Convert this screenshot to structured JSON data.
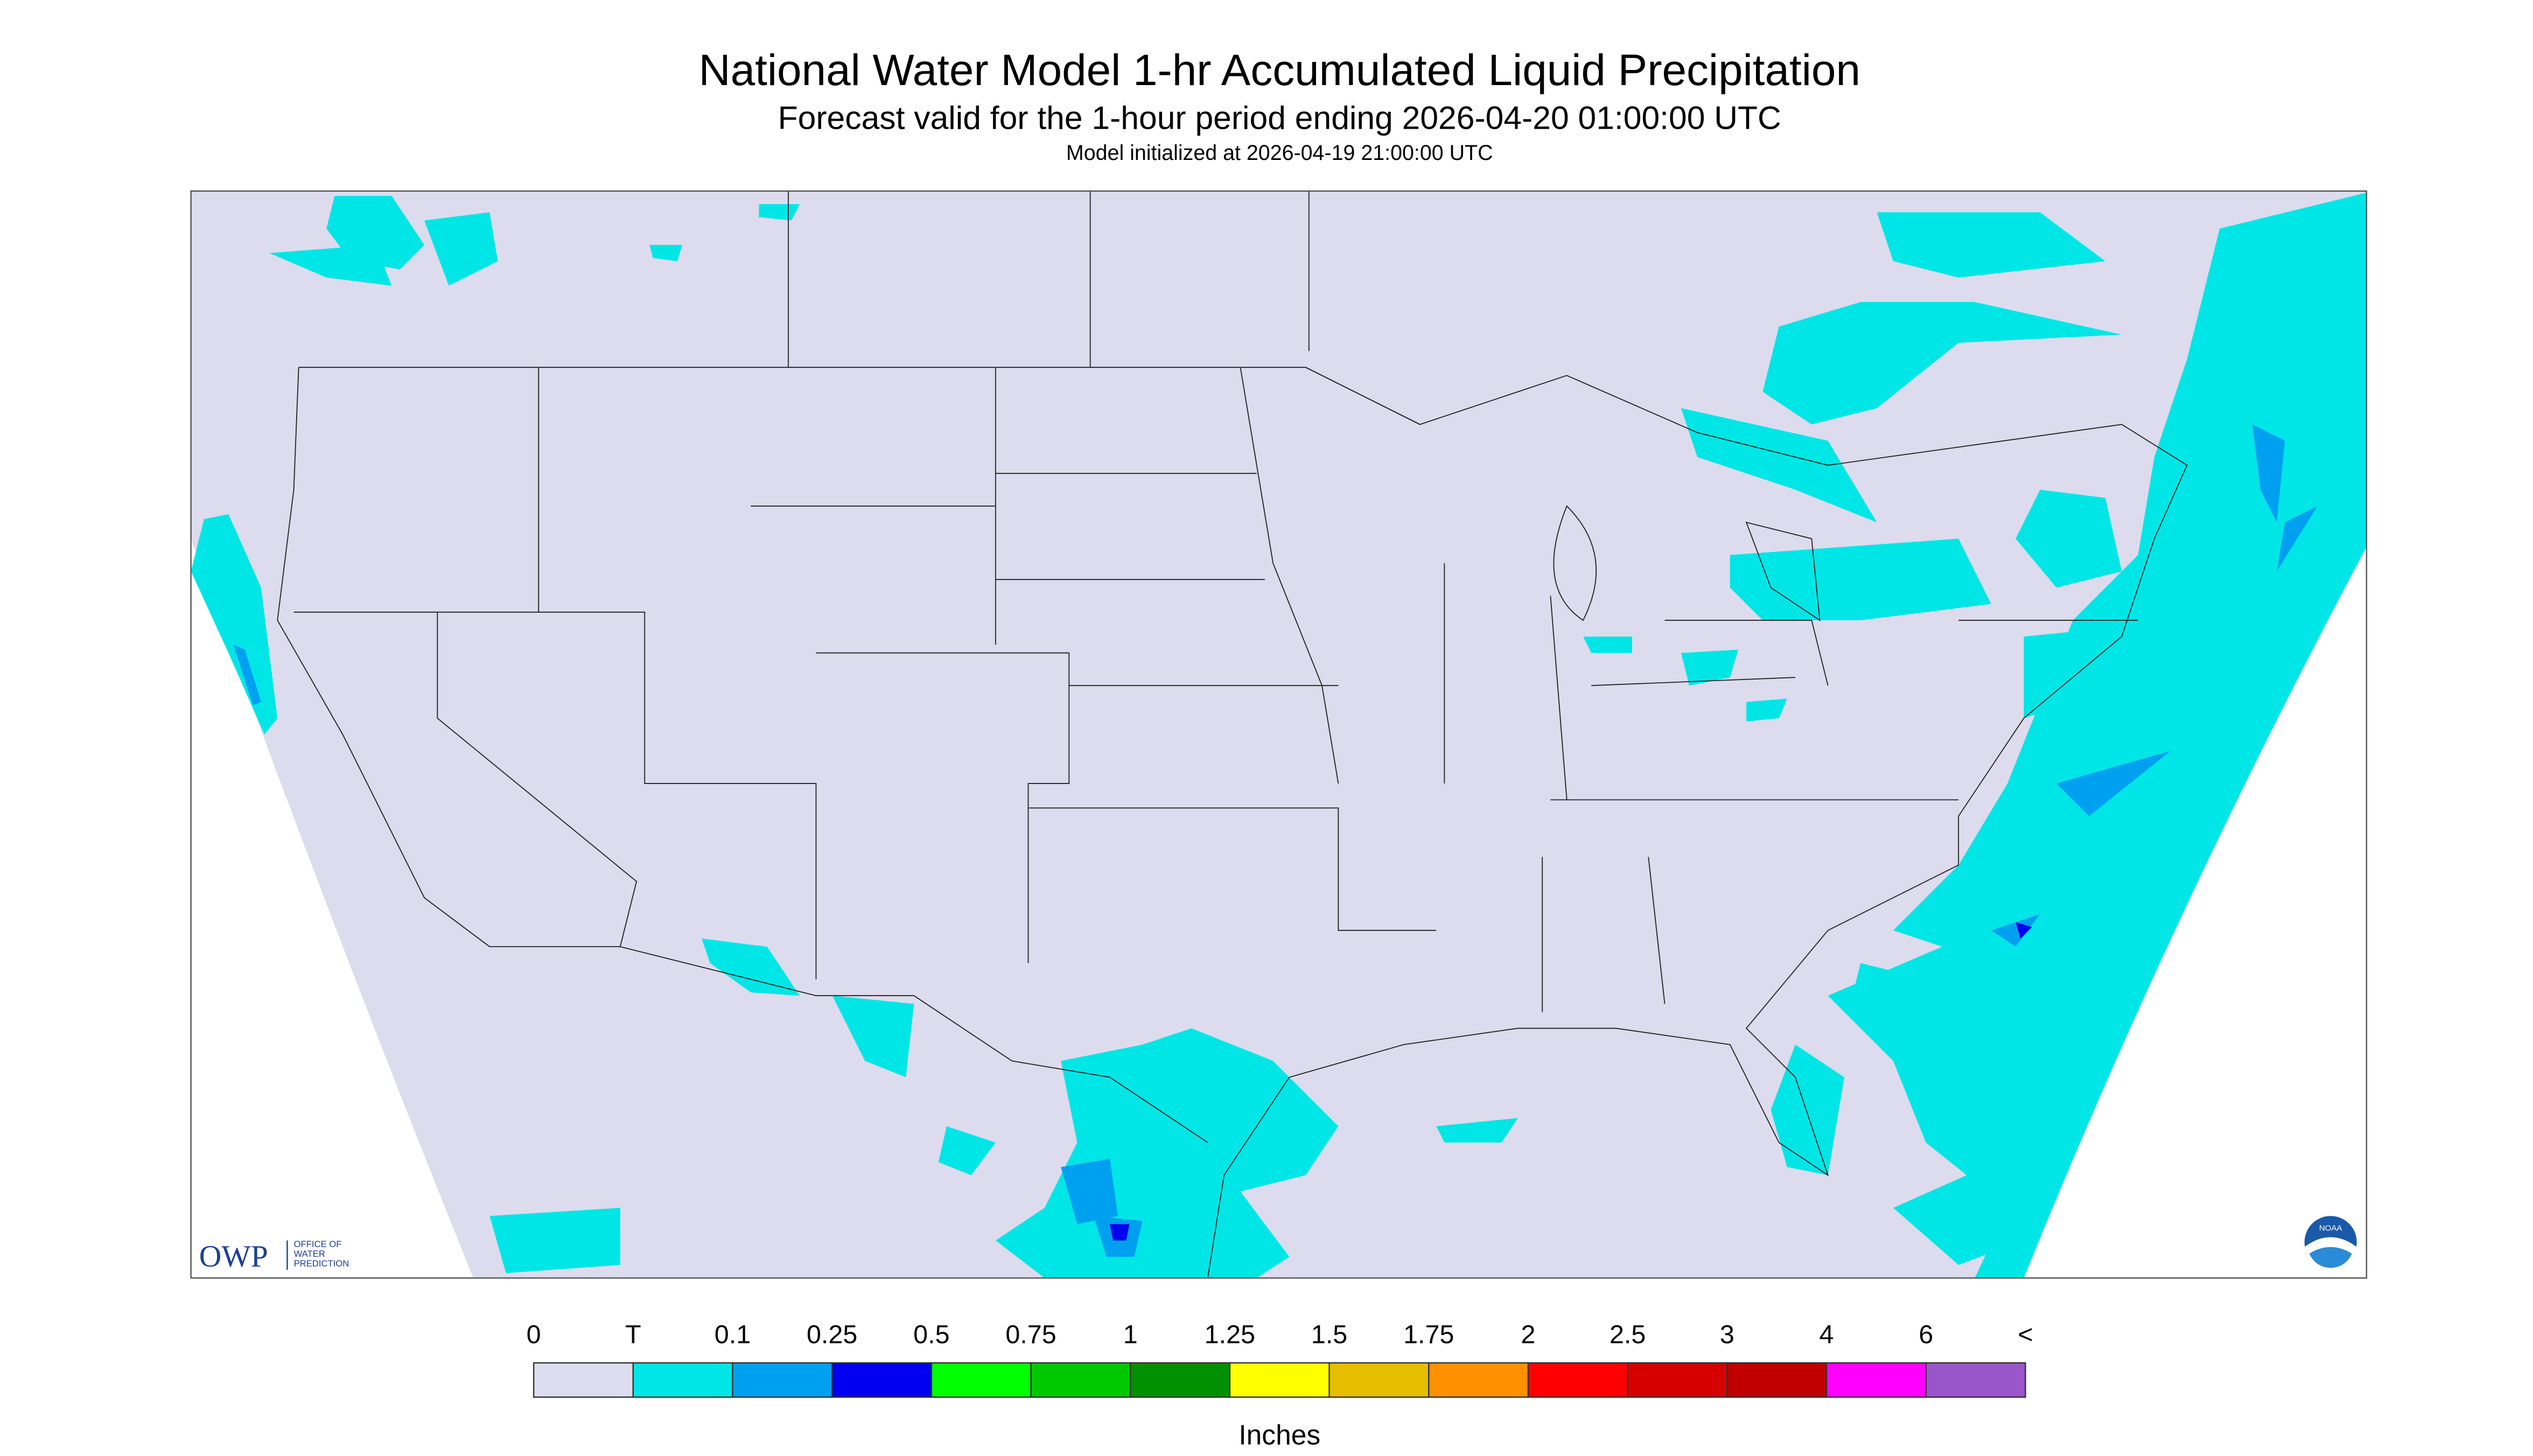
{
  "header": {
    "title": "National Water Model 1-hr Accumulated Liquid Precipitation",
    "subtitle": "Forecast valid for the 1-hour period ending 2026-04-20 01:00:00 UTC",
    "init": "Model initialized at 2026-04-19 21:00:00 UTC"
  },
  "logo": {
    "owp": "OWP",
    "office": [
      "OFFICE OF",
      "WATER",
      "PREDICTION"
    ],
    "noaa": "NOAA"
  },
  "legend": {
    "labels": [
      "0",
      "T",
      "0.1",
      "0.25",
      "0.5",
      "0.75",
      "1",
      "1.25",
      "1.5",
      "1.75",
      "2",
      "2.5",
      "3",
      "4",
      "6",
      "<"
    ],
    "colors": [
      "#dcdcee",
      "#00e6e6",
      "#00a0f0",
      "#0000f0",
      "#00ff00",
      "#00c800",
      "#009000",
      "#ffff00",
      "#e6be00",
      "#ff9000",
      "#ff0000",
      "#d60000",
      "#c00000",
      "#ff00ff",
      "#9955c9"
    ],
    "unit": "Inches"
  }
}
